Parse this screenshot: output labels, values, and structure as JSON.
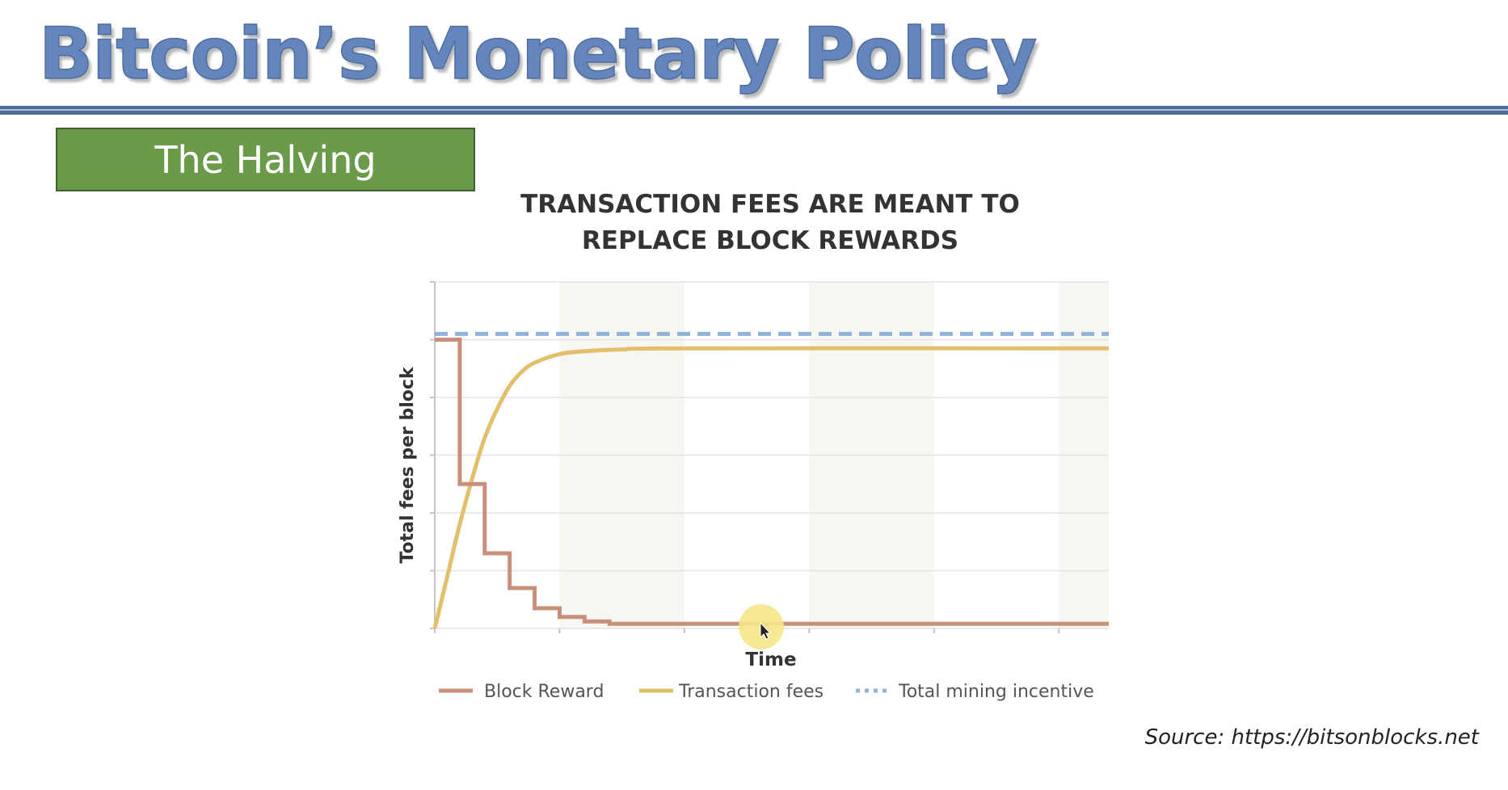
{
  "slide": {
    "title": "Bitcoin’s Monetary Policy",
    "section": "The Halving",
    "source": "Source: https://bitsonblocks.net"
  },
  "colors": {
    "title": "#6485bd",
    "rule": "#4f6d97",
    "section_badge": "#6c9a4b",
    "block_reward": "#c8907a",
    "transaction_fees": "#e2bf6a",
    "total_mining_incentive": "#93b2d8"
  },
  "icons": {
    "cursor": "mouse-pointer-icon"
  },
  "chart_data": {
    "type": "line",
    "title_lines": [
      "TRANSACTION FEES ARE MEANT TO",
      "REPLACE BLOCK REWARDS"
    ],
    "xlabel": "Time",
    "ylabel": "Total fees per block",
    "xlim": [
      0,
      5.4
    ],
    "ylim": [
      0,
      6
    ],
    "grid": true,
    "x_ticks_labeled": false,
    "y_ticks_labeled": false,
    "shaded_bands": [
      [
        1,
        2
      ],
      [
        3,
        4
      ],
      [
        5,
        5.4
      ]
    ],
    "legend": {
      "position": "bottom"
    },
    "series": [
      {
        "name": "Block Reward",
        "style": "step",
        "points": [
          [
            0,
            5
          ],
          [
            0.2,
            5
          ],
          [
            0.2,
            2.5
          ],
          [
            0.4,
            2.5
          ],
          [
            0.4,
            1.3
          ],
          [
            0.6,
            1.3
          ],
          [
            0.6,
            0.7
          ],
          [
            0.8,
            0.7
          ],
          [
            0.8,
            0.35
          ],
          [
            1.0,
            0.35
          ],
          [
            1.0,
            0.2
          ],
          [
            1.2,
            0.2
          ],
          [
            1.2,
            0.12
          ],
          [
            1.4,
            0.12
          ],
          [
            1.4,
            0.08
          ],
          [
            5.4,
            0.08
          ]
        ]
      },
      {
        "name": "Transaction fees",
        "style": "curve",
        "points": [
          [
            0,
            0
          ],
          [
            0.1,
            0.9
          ],
          [
            0.2,
            1.8
          ],
          [
            0.3,
            2.6
          ],
          [
            0.4,
            3.3
          ],
          [
            0.5,
            3.8
          ],
          [
            0.6,
            4.2
          ],
          [
            0.7,
            4.45
          ],
          [
            0.8,
            4.6
          ],
          [
            1.0,
            4.75
          ],
          [
            1.2,
            4.8
          ],
          [
            1.5,
            4.83
          ],
          [
            2.0,
            4.85
          ],
          [
            5.4,
            4.85
          ]
        ]
      },
      {
        "name": "Total mining incentive",
        "style": "dashed",
        "points": [
          [
            0,
            5.1
          ],
          [
            5.4,
            5.1
          ]
        ]
      }
    ]
  }
}
